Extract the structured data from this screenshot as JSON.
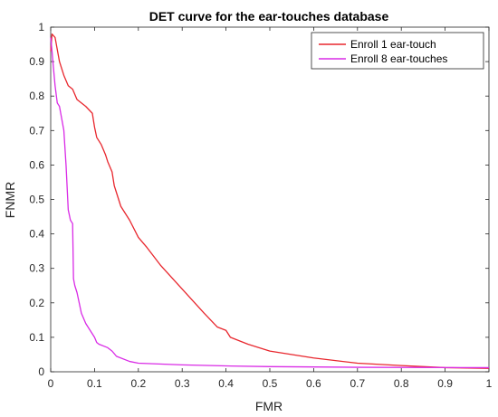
{
  "chart_data": {
    "type": "line",
    "title": "DET curve for the ear-touches database",
    "xlabel": "FMR",
    "ylabel": "FNMR",
    "xlim": [
      0,
      1
    ],
    "ylim": [
      0,
      1
    ],
    "xticks": [
      0,
      0.1,
      0.2,
      0.3,
      0.4,
      0.5,
      0.6,
      0.7,
      0.8,
      0.9,
      1
    ],
    "yticks": [
      0,
      0.1,
      0.2,
      0.3,
      0.4,
      0.5,
      0.6,
      0.7,
      0.8,
      0.9,
      1
    ],
    "xtick_labels": [
      "0",
      "0.1",
      "0.2",
      "0.3",
      "0.4",
      "0.5",
      "0.6",
      "0.7",
      "0.8",
      "0.9",
      "1"
    ],
    "ytick_labels": [
      "0",
      "0.1",
      "0.2",
      "0.3",
      "0.4",
      "0.5",
      "0.6",
      "0.7",
      "0.8",
      "0.9",
      "1"
    ],
    "grid": false,
    "legend_position": "top-right",
    "series": [
      {
        "name": "Enroll 1 ear-touch",
        "color": "#e8262d",
        "x": [
          0,
          0.003,
          0.01,
          0.02,
          0.03,
          0.04,
          0.05,
          0.06,
          0.08,
          0.095,
          0.1,
          0.105,
          0.115,
          0.125,
          0.13,
          0.14,
          0.145,
          0.15,
          0.16,
          0.17,
          0.18,
          0.2,
          0.22,
          0.25,
          0.3,
          0.35,
          0.38,
          0.4,
          0.41,
          0.45,
          0.5,
          0.6,
          0.7,
          0.8,
          0.9,
          1
        ],
        "y": [
          0.93,
          0.98,
          0.97,
          0.9,
          0.86,
          0.83,
          0.82,
          0.79,
          0.77,
          0.75,
          0.71,
          0.68,
          0.66,
          0.63,
          0.61,
          0.58,
          0.54,
          0.52,
          0.48,
          0.46,
          0.44,
          0.39,
          0.36,
          0.31,
          0.24,
          0.17,
          0.13,
          0.12,
          0.1,
          0.08,
          0.06,
          0.04,
          0.025,
          0.018,
          0.012,
          0.01
        ]
      },
      {
        "name": "Enroll 8 ear-touches",
        "color": "#d92be6",
        "x": [
          0,
          0.003,
          0.005,
          0.01,
          0.015,
          0.02,
          0.03,
          0.035,
          0.04,
          0.045,
          0.05,
          0.052,
          0.055,
          0.06,
          0.065,
          0.07,
          0.08,
          0.09,
          0.1,
          0.105,
          0.11,
          0.13,
          0.14,
          0.15,
          0.18,
          0.2,
          0.3,
          0.4,
          0.5,
          0.7,
          1
        ],
        "y": [
          0.97,
          0.93,
          0.9,
          0.83,
          0.78,
          0.77,
          0.7,
          0.6,
          0.47,
          0.44,
          0.43,
          0.27,
          0.25,
          0.23,
          0.2,
          0.17,
          0.14,
          0.12,
          0.1,
          0.085,
          0.08,
          0.07,
          0.06,
          0.045,
          0.03,
          0.025,
          0.02,
          0.017,
          0.015,
          0.013,
          0.012
        ]
      }
    ]
  }
}
